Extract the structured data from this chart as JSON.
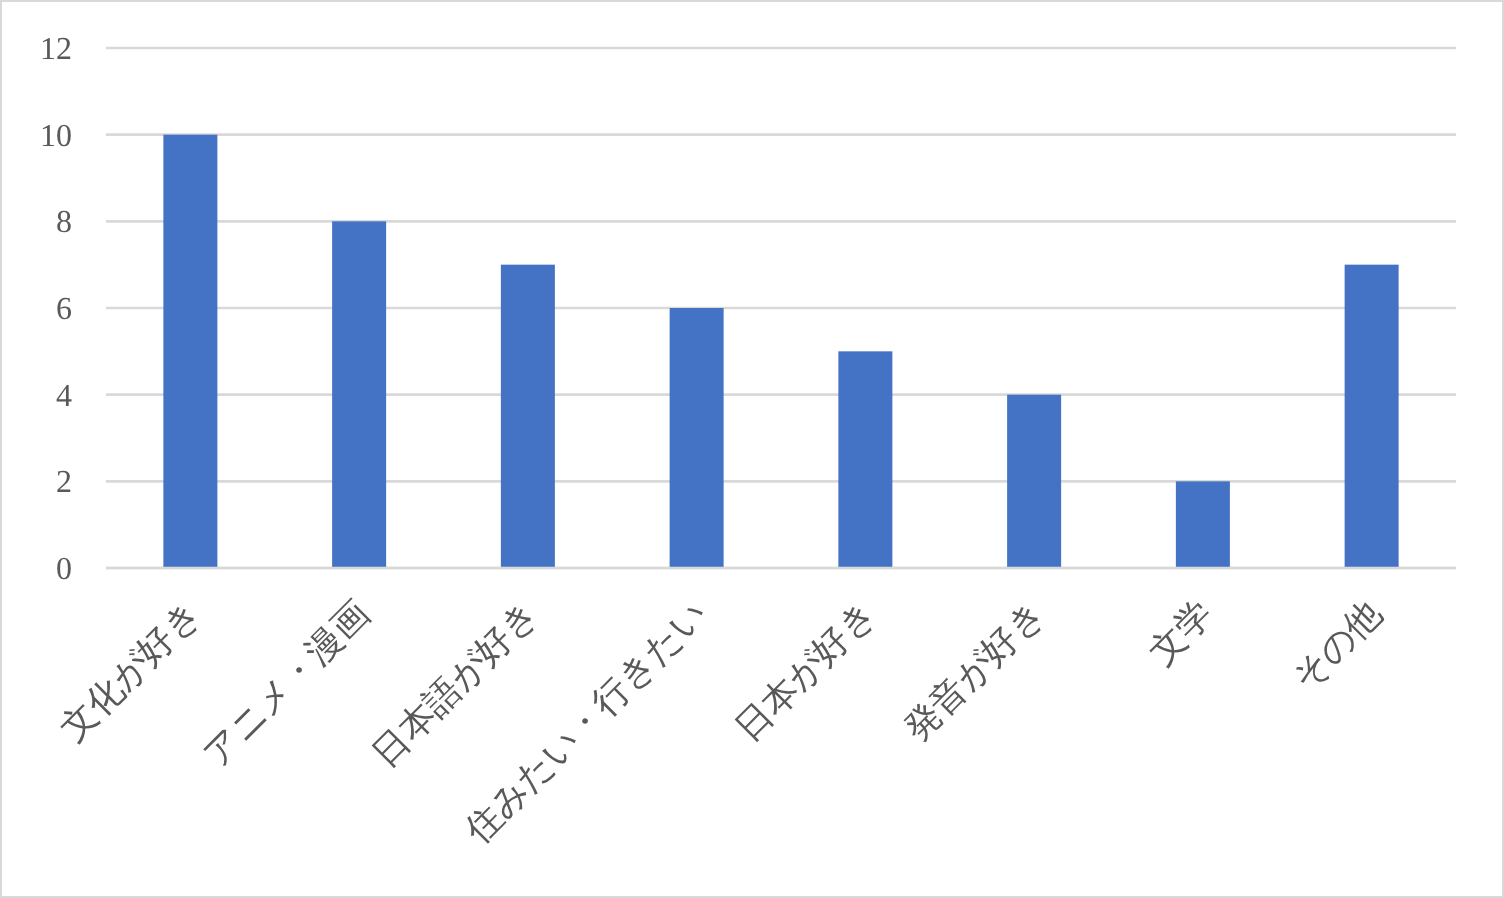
{
  "chart_data": {
    "type": "bar",
    "categories": [
      "文化が好き",
      "アニメ・漫画",
      "日本語が好き",
      "住みたい・行きたい",
      "日本が好き",
      "発音が好き",
      "文学",
      "その他"
    ],
    "values": [
      10,
      8,
      7,
      6,
      5,
      4,
      2,
      7
    ],
    "color": "#4472c4",
    "ylim": [
      0,
      12
    ],
    "yticks": [
      0,
      2,
      4,
      6,
      8,
      10,
      12
    ],
    "grid": "y"
  }
}
